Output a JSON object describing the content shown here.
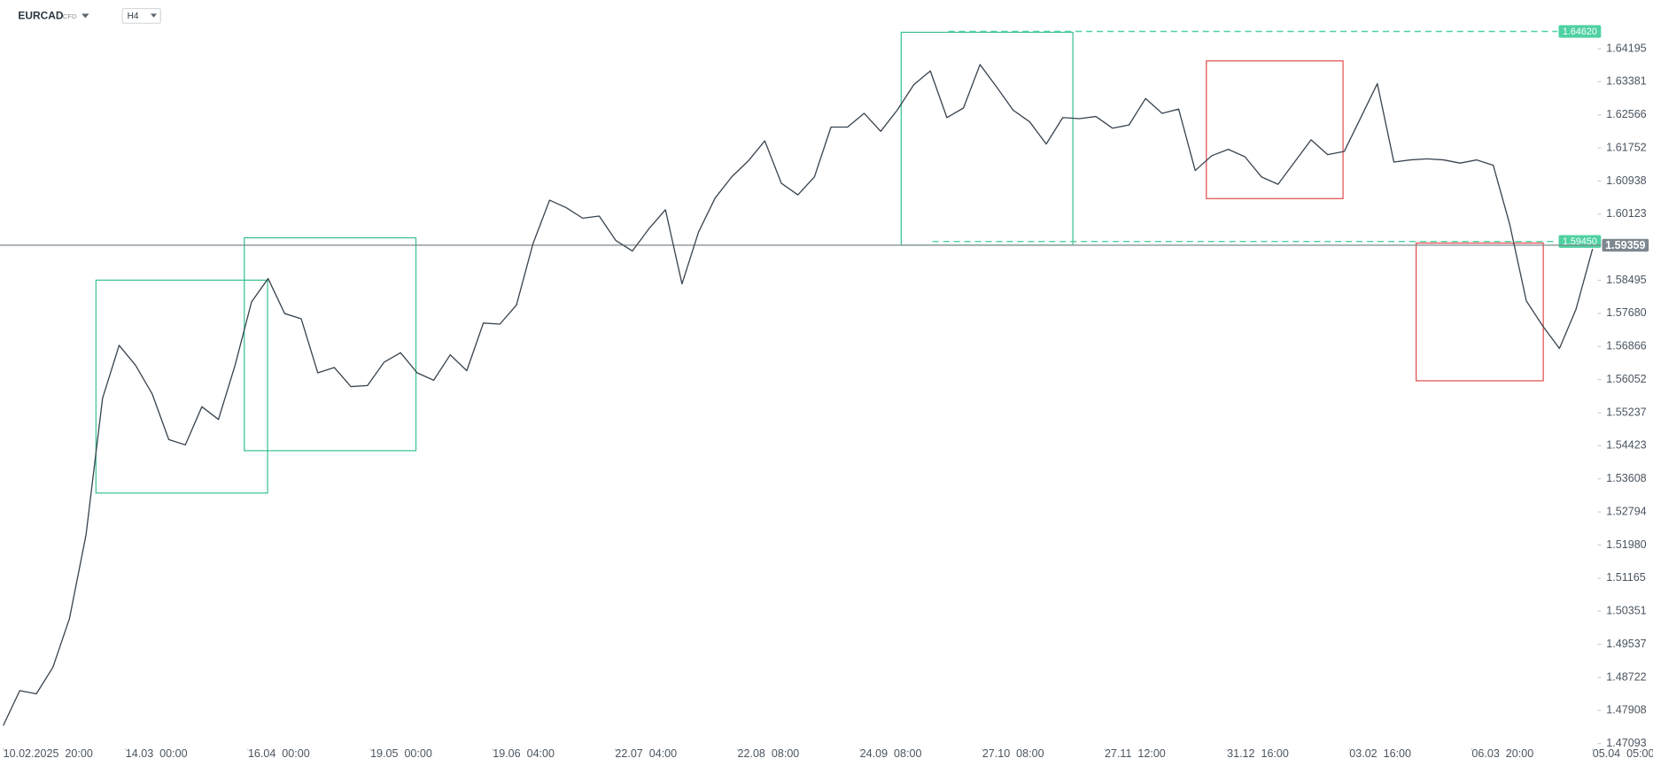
{
  "toolbar": {
    "symbol": "EURCAD",
    "instrument_type": "CFD",
    "timeframe": "H4"
  },
  "chart_data": {
    "type": "line",
    "color": "#38444f",
    "values": [
      1.47536,
      1.48397,
      1.48318,
      1.4897,
      1.50169,
      1.52229,
      1.55592,
      1.56895,
      1.564,
      1.55696,
      1.54575,
      1.54445,
      1.55383,
      1.5507,
      1.564,
      1.57964,
      1.58538,
      1.57677,
      1.57547,
      1.56218,
      1.56348,
      1.55879,
      1.55905,
      1.56478,
      1.56713,
      1.56218,
      1.56035,
      1.56661,
      1.5627,
      1.57443,
      1.57417,
      1.57886,
      1.59398,
      1.60467,
      1.60284,
      1.60024,
      1.60076,
      1.59476,
      1.59216,
      1.59763,
      1.60232,
      1.58407,
      1.59685,
      1.60519,
      1.61041,
      1.61432,
      1.61927,
      1.60884,
      1.60597,
      1.61041,
      1.62266,
      1.62266,
      1.62605,
      1.62162,
      1.62683,
      1.63309,
      1.63648,
      1.625,
      1.62735,
      1.63804,
      1.63256,
      1.62683,
      1.62396,
      1.61849,
      1.625,
      1.62474,
      1.62527,
      1.6224,
      1.62318,
      1.6297,
      1.62605,
      1.62709,
      1.61197,
      1.61562,
      1.61718,
      1.61536,
      1.61041,
      1.60858,
      1.61406,
      1.61953,
      1.61588,
      1.61666,
      1.625,
      1.63335,
      1.61406,
      1.61458,
      1.61484,
      1.61458,
      1.61379,
      1.61458,
      1.61327,
      1.59867,
      1.5799,
      1.57365,
      1.56817,
      1.57782,
      1.59268
    ],
    "xlim": [
      0,
      100
    ],
    "xticks": [
      {
        "value": 0,
        "label": "10.02.2025  20:00"
      },
      {
        "value": 7.7,
        "label": "14.03  00:00"
      },
      {
        "value": 15.4,
        "label": "16.04  00:00"
      },
      {
        "value": 23.1,
        "label": "19.05  00:00"
      },
      {
        "value": 30.8,
        "label": "19.06  04:00"
      },
      {
        "value": 38.5,
        "label": "22.07  04:00"
      },
      {
        "value": 46.2,
        "label": "22.08  08:00"
      },
      {
        "value": 53.9,
        "label": "24.09  08:00"
      },
      {
        "value": 61.6,
        "label": "27.10  08:00"
      },
      {
        "value": 69.3,
        "label": "27.11  12:00"
      },
      {
        "value": 77,
        "label": "31.12  16:00"
      },
      {
        "value": 84.7,
        "label": "03.02  16:00"
      },
      {
        "value": 92.4,
        "label": "06.03  20:00"
      },
      {
        "value": 100,
        "label": "05.04  05:00"
      }
    ],
    "ylim": [
      1.47,
      1.6475
    ],
    "yticks": [
      1.64195,
      1.63381,
      1.62566,
      1.61752,
      1.60938,
      1.60123,
      1.58495,
      {
        "value": 1.5768,
        "label": "1.57680"
      },
      1.56866,
      1.56052,
      1.55237,
      1.54423,
      1.53608,
      1.52794,
      {
        "value": 1.5198,
        "label": "1.51980"
      },
      1.51165,
      1.50351,
      1.49537,
      1.48722,
      1.47908,
      1.47093
    ],
    "levels": [
      {
        "value": 1.6462,
        "label": "1.64620",
        "color": "#4fd1a1",
        "dashed": true
      },
      {
        "value": 1.5945,
        "label": "1.59450",
        "color": "#4fd1a1",
        "dashed": true
      },
      {
        "value": 1.59359,
        "label": "1.59359",
        "color": "#7d878f",
        "dashed": false
      }
    ]
  }
}
